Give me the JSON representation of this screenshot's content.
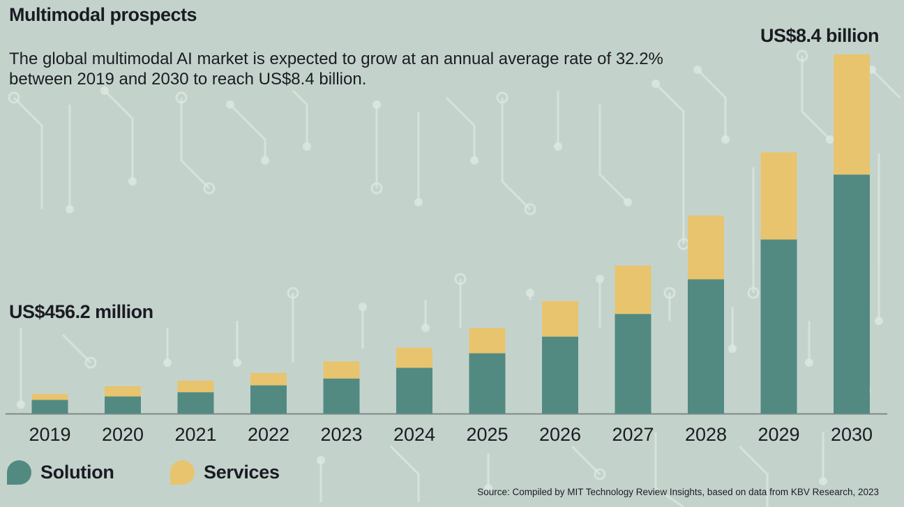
{
  "title": "Multimodal prospects",
  "subtitle": "The global multimodal AI market is expected to grow at an annual average rate of 32.2% between 2019 and 2030 to reach US$8.4 billion.",
  "annotations": {
    "start": "US$456.2 million",
    "end": "US$8.4 billion"
  },
  "source": "Source: Compiled by MIT Technology Review Insights, based on data from KBV Research, 2023",
  "colors": {
    "background": "#c3d3cc",
    "circuit": "#dde8e2",
    "solution": "#528a82",
    "services": "#e8c46e",
    "axis": "#7d8a87"
  },
  "chart_data": {
    "type": "bar",
    "stacked": true,
    "categories": [
      "2019",
      "2020",
      "2021",
      "2022",
      "2023",
      "2024",
      "2025",
      "2026",
      "2027",
      "2028",
      "2029",
      "2030"
    ],
    "series": [
      {
        "name": "Solution",
        "values": [
          0.32,
          0.4,
          0.5,
          0.66,
          0.82,
          1.07,
          1.41,
          1.8,
          2.33,
          3.14,
          4.07,
          5.59
        ]
      },
      {
        "name": "Services",
        "values": [
          0.14,
          0.24,
          0.27,
          0.29,
          0.4,
          0.47,
          0.59,
          0.83,
          1.13,
          1.49,
          2.04,
          2.81
        ]
      }
    ],
    "ylim": [
      0,
      8.4
    ],
    "legend_position": "bottom-left",
    "grid": false
  }
}
